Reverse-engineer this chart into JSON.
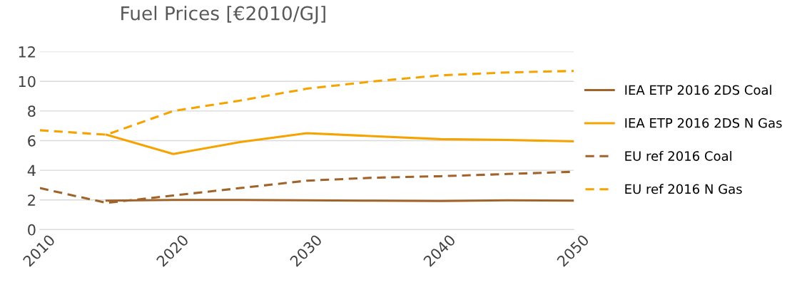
{
  "chart_data": {
    "type": "line",
    "title": "Fuel Prices [€2010/GJ]",
    "x": [
      2010,
      2015,
      2020,
      2025,
      2030,
      2035,
      2040,
      2045,
      2050
    ],
    "series": [
      {
        "name": "IEA ETP 2016 2DS Coal",
        "color": "#a0642a",
        "line_style": "solid",
        "values": [
          null,
          1.95,
          2.0,
          2.0,
          1.98,
          1.95,
          1.93,
          1.98,
          1.95
        ]
      },
      {
        "name": "IEA ETP 2016 2DS N Gas",
        "color": "#f5a300",
        "line_style": "solid",
        "values": [
          null,
          6.4,
          5.1,
          5.9,
          6.5,
          6.3,
          6.1,
          6.05,
          5.95
        ]
      },
      {
        "name": "EU ref 2016 Coal",
        "color": "#a0642a",
        "line_style": "dashed",
        "values": [
          2.8,
          1.8,
          2.3,
          2.8,
          3.3,
          3.5,
          3.6,
          3.75,
          3.9
        ]
      },
      {
        "name": "EU ref 2016 N Gas",
        "color": "#f5a300",
        "line_style": "dashed",
        "values": [
          6.7,
          6.4,
          8.0,
          8.7,
          9.5,
          10.0,
          10.4,
          10.6,
          10.7
        ]
      }
    ],
    "xlim": [
      2010,
      2050
    ],
    "xticks": [
      2010,
      2020,
      2030,
      2040,
      2050
    ],
    "ylim": [
      0,
      12
    ],
    "yticks": [
      0,
      2,
      4,
      6,
      8,
      10,
      12
    ],
    "grid": "y",
    "legend": "right",
    "marker": "none"
  }
}
